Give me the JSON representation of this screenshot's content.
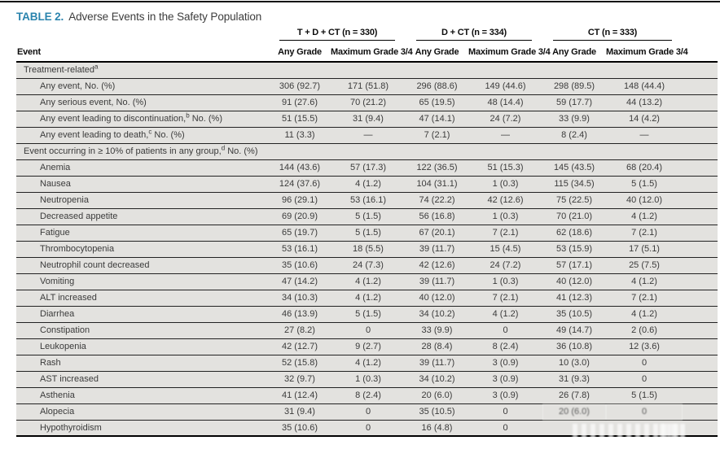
{
  "title": {
    "label": "TABLE 2.",
    "text": "Adverse Events in the Safety Population"
  },
  "accent_color": "#2a84ae",
  "table": {
    "event_header": "Event",
    "groups": [
      {
        "label": "T + D + CT (n = 330)",
        "cols": [
          "Any Grade",
          "Maximum Grade 3/4"
        ]
      },
      {
        "label": "D + CT (n = 334)",
        "cols": [
          "Any Grade",
          "Maximum Grade 3/4"
        ]
      },
      {
        "label": "CT (n = 333)",
        "cols": [
          "Any Grade",
          "Maximum Grade 3/4"
        ]
      }
    ],
    "rows": [
      {
        "section": true,
        "pre": "Treatment-related",
        "sup": "a",
        "post": ""
      },
      {
        "pre": "Any event, No. (%)",
        "values": [
          "306 (92.7)",
          "171 (51.8)",
          "296 (88.6)",
          "149 (44.6)",
          "298 (89.5)",
          "148 (44.4)"
        ]
      },
      {
        "pre": "Any serious event, No. (%)",
        "values": [
          "91 (27.6)",
          "70 (21.2)",
          "65 (19.5)",
          "48 (14.4)",
          "59 (17.7)",
          "44 (13.2)"
        ]
      },
      {
        "pre": "Any event leading to discontinuation,",
        "sup": "b",
        "post": " No. (%)",
        "values": [
          "51 (15.5)",
          "31 (9.4)",
          "47 (14.1)",
          "24 (7.2)",
          "33 (9.9)",
          "14 (4.2)"
        ]
      },
      {
        "pre": "Any event leading to death,",
        "sup": "c",
        "post": " No. (%)",
        "values": [
          "11 (3.3)",
          "—",
          "7 (2.1)",
          "—",
          "8 (2.4)",
          "—"
        ]
      },
      {
        "section": true,
        "pre": "Event occurring in ≥ 10% of patients in any group,",
        "sup": "d",
        "post": " No. (%)"
      },
      {
        "pre": "Anemia",
        "values": [
          "144 (43.6)",
          "57 (17.3)",
          "122 (36.5)",
          "51 (15.3)",
          "145 (43.5)",
          "68 (20.4)"
        ]
      },
      {
        "pre": "Nausea",
        "values": [
          "124 (37.6)",
          "4 (1.2)",
          "104 (31.1)",
          "1 (0.3)",
          "115 (34.5)",
          "5 (1.5)"
        ]
      },
      {
        "pre": "Neutropenia",
        "values": [
          "96 (29.1)",
          "53 (16.1)",
          "74 (22.2)",
          "42 (12.6)",
          "75 (22.5)",
          "40 (12.0)"
        ]
      },
      {
        "pre": "Decreased appetite",
        "values": [
          "69 (20.9)",
          "5 (1.5)",
          "56 (16.8)",
          "1 (0.3)",
          "70 (21.0)",
          "4 (1.2)"
        ]
      },
      {
        "pre": "Fatigue",
        "values": [
          "65 (19.7)",
          "5 (1.5)",
          "67 (20.1)",
          "7 (2.1)",
          "62 (18.6)",
          "7 (2.1)"
        ]
      },
      {
        "pre": "Thrombocytopenia",
        "values": [
          "53 (16.1)",
          "18 (5.5)",
          "39 (11.7)",
          "15 (4.5)",
          "53 (15.9)",
          "17 (5.1)"
        ]
      },
      {
        "pre": "Neutrophil count decreased",
        "values": [
          "35 (10.6)",
          "24 (7.3)",
          "42 (12.6)",
          "24 (7.2)",
          "57 (17.1)",
          "25 (7.5)"
        ]
      },
      {
        "pre": "Vomiting",
        "values": [
          "47 (14.2)",
          "4 (1.2)",
          "39 (11.7)",
          "1 (0.3)",
          "40 (12.0)",
          "4 (1.2)"
        ]
      },
      {
        "pre": "ALT increased",
        "values": [
          "34 (10.3)",
          "4 (1.2)",
          "40 (12.0)",
          "7 (2.1)",
          "41 (12.3)",
          "7 (2.1)"
        ]
      },
      {
        "pre": "Diarrhea",
        "values": [
          "46 (13.9)",
          "5 (1.5)",
          "34 (10.2)",
          "4 (1.2)",
          "35 (10.5)",
          "4 (1.2)"
        ]
      },
      {
        "pre": "Constipation",
        "values": [
          "27 (8.2)",
          "0",
          "33 (9.9)",
          "0",
          "49 (14.7)",
          "2 (0.6)"
        ]
      },
      {
        "pre": "Leukopenia",
        "values": [
          "42 (12.7)",
          "9 (2.7)",
          "28 (8.4)",
          "8 (2.4)",
          "36 (10.8)",
          "12 (3.6)"
        ]
      },
      {
        "pre": "Rash",
        "values": [
          "52 (15.8)",
          "4 (1.2)",
          "39 (11.7)",
          "3 (0.9)",
          "10 (3.0)",
          "0"
        ]
      },
      {
        "pre": "AST increased",
        "values": [
          "32 (9.7)",
          "1 (0.3)",
          "34 (10.2)",
          "3 (0.9)",
          "31 (9.3)",
          "0"
        ]
      },
      {
        "pre": "Asthenia",
        "values": [
          "41 (12.4)",
          "8 (2.4)",
          "20 (6.0)",
          "3 (0.9)",
          "26 (7.8)",
          "5 (1.5)"
        ]
      },
      {
        "pre": "Alopecia",
        "values": [
          "31 (9.4)",
          "0",
          "35 (10.5)",
          "0",
          "20 (6.0)",
          "0"
        ],
        "smear": [
          4,
          5
        ]
      },
      {
        "pre": "Hypothyroidism",
        "values": [
          "35 (10.6)",
          "0",
          "16 (4.8)",
          "0",
          "",
          ""
        ]
      }
    ]
  }
}
